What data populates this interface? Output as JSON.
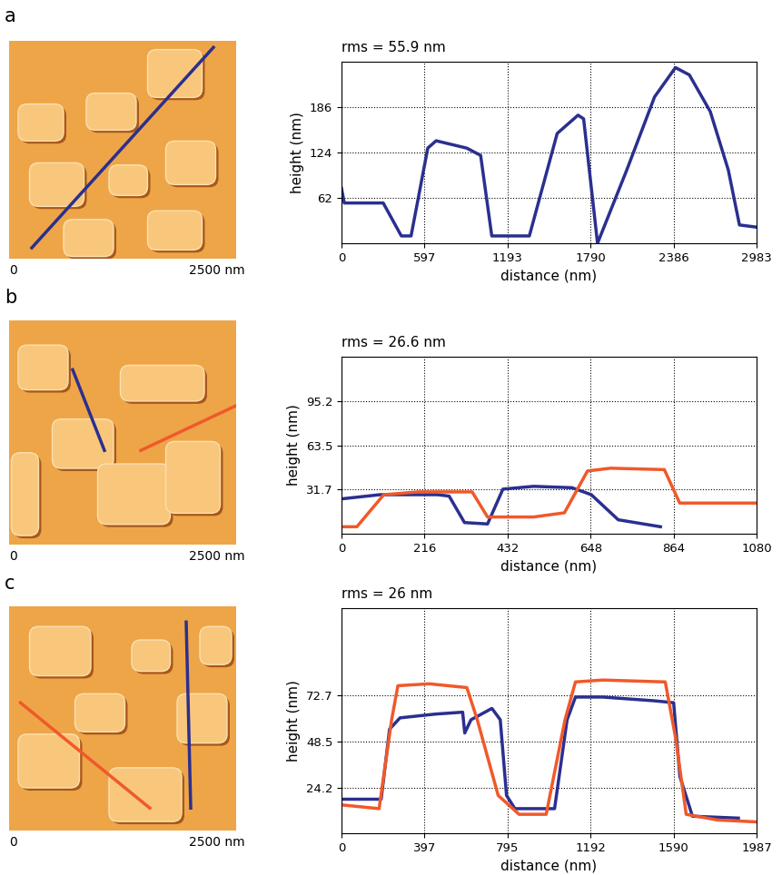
{
  "chart_data": [
    {
      "type": "line",
      "panel": "a",
      "title": "rms = 55.9 nm",
      "x_label": "distance (nm)",
      "y_label": "height (nm)",
      "image_labels": [
        "0",
        "2500 nm"
      ],
      "xlim": [
        0,
        2983
      ],
      "ylim": [
        0,
        248
      ],
      "xticks": [
        0,
        597,
        1193,
        1790,
        2386,
        2983
      ],
      "yticks": [
        62,
        124,
        186
      ],
      "grid": true,
      "series": [
        {
          "color": "#2b2f8f",
          "x": [
            0,
            20,
            300,
            430,
            500,
            620,
            680,
            900,
            1000,
            1080,
            1350,
            1550,
            1700,
            1740,
            1840,
            2050,
            2250,
            2400,
            2500,
            2650,
            2780,
            2860,
            2983
          ],
          "values": [
            75,
            55,
            55,
            10,
            10,
            130,
            140,
            130,
            120,
            10,
            10,
            150,
            175,
            170,
            0,
            100,
            200,
            240,
            230,
            180,
            100,
            25,
            22
          ]
        }
      ]
    },
    {
      "type": "line",
      "panel": "b",
      "title": "rms = 26.6 nm",
      "x_label": "distance (nm)",
      "y_label": "height (nm)",
      "image_labels": [
        "0",
        "2500 nm"
      ],
      "xlim": [
        0,
        1080
      ],
      "ylim": [
        0,
        127
      ],
      "xticks": [
        0,
        216,
        432,
        648,
        864,
        1080
      ],
      "yticks": [
        31.7,
        63.5,
        95.2
      ],
      "grid": true,
      "series": [
        {
          "color": "#2b2f8f",
          "x": [
            0,
            100,
            250,
            280,
            320,
            380,
            420,
            500,
            600,
            650,
            720,
            830
          ],
          "values": [
            25,
            28,
            28,
            27,
            8,
            7,
            32,
            34,
            33,
            28,
            10,
            5
          ]
        },
        {
          "color": "#f0592a",
          "x": [
            0,
            40,
            110,
            200,
            340,
            380,
            500,
            580,
            640,
            700,
            840,
            880,
            1080
          ],
          "values": [
            5,
            5,
            28,
            30,
            30,
            12,
            12,
            15,
            45,
            47,
            46,
            22,
            22
          ]
        }
      ]
    },
    {
      "type": "line",
      "panel": "c",
      "title": "rms = 26 nm",
      "x_label": "distance (nm)",
      "y_label": "height (nm)",
      "image_labels": [
        "0",
        "2500 nm"
      ],
      "xlim": [
        0,
        1987
      ],
      "ylim": [
        0,
        119
      ],
      "xticks": [
        0,
        397,
        795,
        1192,
        1590,
        1987
      ],
      "yticks": [
        24.2,
        48.5,
        72.7
      ],
      "grid": true,
      "series": [
        {
          "color": "#2b2f8f",
          "x": [
            0,
            190,
            230,
            280,
            450,
            580,
            590,
            620,
            720,
            760,
            790,
            830,
            1020,
            1080,
            1120,
            1250,
            1500,
            1590,
            1620,
            1680,
            1900
          ],
          "values": [
            18,
            18,
            55,
            61,
            63,
            64,
            53,
            60,
            66,
            60,
            20,
            13,
            13,
            60,
            72,
            72,
            70,
            69,
            30,
            9,
            8
          ]
        },
        {
          "color": "#f0592a",
          "x": [
            0,
            180,
            240,
            270,
            420,
            600,
            650,
            750,
            850,
            980,
            1070,
            1120,
            1250,
            1550,
            1600,
            1650,
            1800,
            1987
          ],
          "values": [
            15,
            13,
            60,
            78,
            79,
            77,
            60,
            20,
            10,
            10,
            60,
            80,
            81,
            80,
            50,
            10,
            7,
            6
          ]
        }
      ]
    }
  ]
}
